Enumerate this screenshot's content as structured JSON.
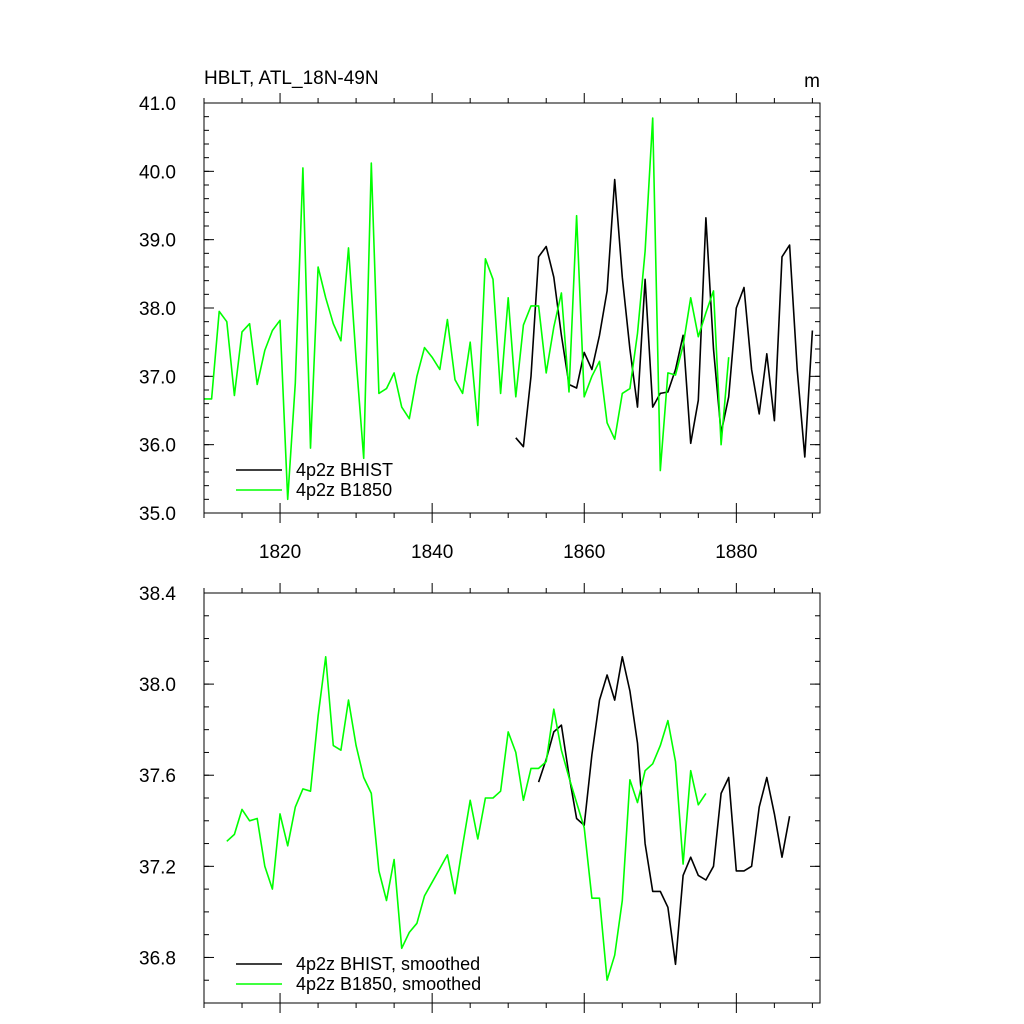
{
  "chart_data": [
    {
      "type": "line",
      "title": "HBLT, ATL_18N-49N",
      "units": "m",
      "xlabel": "",
      "ylabel": "",
      "xlim": [
        1810,
        1891
      ],
      "ylim": [
        35.0,
        41.0
      ],
      "x_ticks": [
        1820,
        1840,
        1860,
        1880
      ],
      "x_tick_labels": [
        "1820",
        "1840",
        "1860",
        "1880"
      ],
      "y_ticks": [
        35.0,
        36.0,
        37.0,
        38.0,
        39.0,
        40.0,
        41.0
      ],
      "y_tick_labels": [
        "35.0",
        "36.0",
        "37.0",
        "38.0",
        "39.0",
        "40.0",
        "41.0"
      ],
      "legend_position": "bottom-left",
      "series": [
        {
          "name": "4p2z BHIST",
          "color": "#000000",
          "x_start": 1851,
          "values": [
            36.1,
            35.97,
            37.0,
            38.75,
            38.9,
            38.45,
            37.6,
            36.88,
            36.83,
            37.35,
            37.1,
            37.6,
            38.25,
            39.88,
            38.45,
            37.4,
            36.55,
            38.42,
            36.55,
            36.75,
            36.77,
            37.1,
            37.6,
            36.02,
            36.65,
            39.32,
            37.4,
            36.17,
            36.7,
            38.0,
            38.3,
            37.1,
            36.45,
            37.33,
            36.35,
            38.75,
            38.92,
            37.1,
            35.82,
            37.67
          ]
        },
        {
          "name": "4p2z B1850",
          "color": "#00ff00",
          "x_start": 1810,
          "values": [
            36.67,
            36.67,
            37.95,
            37.8,
            36.72,
            37.65,
            37.77,
            36.88,
            37.38,
            37.67,
            37.82,
            35.2,
            36.9,
            40.05,
            35.95,
            38.6,
            38.15,
            37.77,
            37.52,
            38.88,
            37.25,
            35.8,
            40.12,
            36.75,
            36.82,
            37.05,
            36.55,
            36.38,
            37.0,
            37.42,
            37.28,
            37.1,
            37.83,
            36.95,
            36.75,
            37.5,
            36.28,
            38.72,
            38.42,
            36.75,
            38.15,
            36.7,
            37.75,
            38.03,
            38.03,
            37.05,
            37.72,
            38.22,
            36.77,
            39.35,
            36.7,
            37.0,
            37.22,
            36.32,
            36.08,
            36.75,
            36.82,
            37.63,
            38.83,
            40.78,
            35.62,
            37.05,
            37.02,
            37.45,
            38.15,
            37.58,
            37.93,
            38.25,
            36.0,
            37.28
          ]
        }
      ]
    },
    {
      "type": "line",
      "title": "",
      "xlabel": "",
      "ylabel": "",
      "xlim": [
        1810,
        1891
      ],
      "ylim": [
        36.6,
        38.4
      ],
      "x_ticks": [
        1820,
        1840,
        1860,
        1880
      ],
      "y_ticks": [
        36.8,
        37.2,
        37.6,
        38.0,
        38.4
      ],
      "y_tick_labels": [
        "36.8",
        "37.2",
        "37.6",
        "38.0",
        "38.4"
      ],
      "legend_position": "bottom-left",
      "series": [
        {
          "name": "4p2z BHIST, smoothed",
          "color": "#000000",
          "x_start": 1854,
          "values": [
            37.57,
            37.67,
            37.79,
            37.82,
            37.6,
            37.41,
            37.38,
            37.69,
            37.93,
            38.04,
            37.93,
            38.12,
            37.97,
            37.74,
            37.3,
            37.09,
            37.09,
            37.02,
            36.77,
            37.16,
            37.24,
            37.16,
            37.14,
            37.2,
            37.52,
            37.59,
            37.18,
            37.18,
            37.2,
            37.46,
            37.59,
            37.43,
            37.24,
            37.42
          ]
        },
        {
          "name": "4p2z B1850, smoothed",
          "color": "#00ff00",
          "x_start": 1813,
          "values": [
            37.31,
            37.34,
            37.45,
            37.4,
            37.41,
            37.2,
            37.1,
            37.43,
            37.29,
            37.46,
            37.54,
            37.53,
            37.86,
            38.12,
            37.73,
            37.71,
            37.93,
            37.73,
            37.59,
            37.52,
            37.18,
            37.05,
            37.23,
            36.84,
            36.91,
            36.95,
            37.07,
            37.13,
            37.19,
            37.25,
            37.08,
            37.29,
            37.49,
            37.32,
            37.5,
            37.5,
            37.53,
            37.79,
            37.7,
            37.49,
            37.63,
            37.63,
            37.66,
            37.89,
            37.71,
            37.59,
            37.48,
            37.37,
            37.06,
            37.06,
            36.7,
            36.81,
            37.05,
            37.58,
            37.48,
            37.62,
            37.65,
            37.73,
            37.84,
            37.66,
            37.21,
            37.62,
            37.47,
            37.52
          ]
        }
      ]
    }
  ]
}
